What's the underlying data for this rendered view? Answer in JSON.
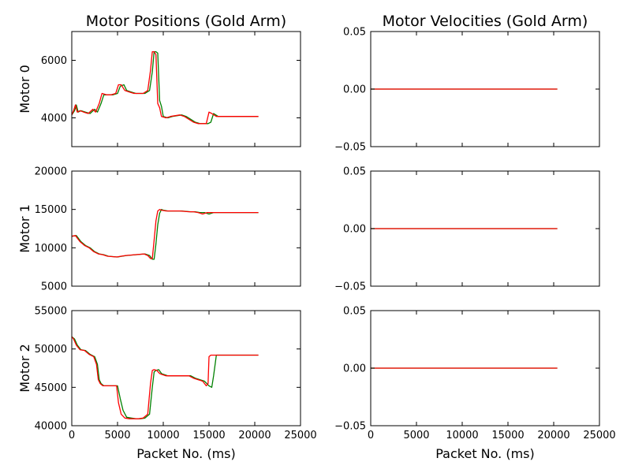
{
  "figure": {
    "titles": [
      "Motor Positions (Gold Arm)",
      "Motor Velocities (Gold Arm)"
    ],
    "xlabel": "Packet No. (ms)",
    "colors": {
      "series_a": "#008000",
      "series_b": "#ff0000"
    }
  },
  "chart_data": [
    {
      "type": "line",
      "title": "Motor Positions (Gold Arm)",
      "ylabel": "Motor 0",
      "xlabel": "",
      "xlim": [
        0,
        25000
      ],
      "ylim": [
        3000,
        7000
      ],
      "yticks": [
        4000,
        6000
      ],
      "ytick_labels": [
        "4000",
        "6000"
      ],
      "xticks": [
        0,
        5000,
        10000,
        15000,
        20000,
        25000
      ],
      "xtick_labels": [],
      "series": [
        {
          "color": "#008000",
          "x": [
            0,
            300,
            500,
            700,
            1000,
            1500,
            2000,
            2500,
            2800,
            3200,
            3500,
            4000,
            4500,
            5000,
            5300,
            5700,
            6000,
            6500,
            7000,
            7500,
            8000,
            8500,
            8800,
            9000,
            9200,
            9400,
            9600,
            9800,
            10000,
            10500,
            11000,
            12000,
            12500,
            13000,
            13500,
            14000,
            14500,
            14900,
            15200,
            15500,
            16000,
            17000,
            18000,
            19000,
            20000,
            20400
          ],
          "y": [
            4100,
            4250,
            4450,
            4200,
            4250,
            4200,
            4150,
            4300,
            4200,
            4500,
            4800,
            4800,
            4800,
            4850,
            5100,
            5150,
            4950,
            4900,
            4850,
            4850,
            4850,
            4950,
            5600,
            6300,
            6300,
            6250,
            4600,
            4400,
            4050,
            4000,
            4050,
            4100,
            4050,
            3950,
            3850,
            3800,
            3800,
            3800,
            3850,
            4150,
            4050,
            4050,
            4050,
            4050,
            4050,
            4050
          ]
        },
        {
          "color": "#ff0000",
          "x": [
            0,
            200,
            400,
            600,
            900,
            1300,
            1800,
            2300,
            2600,
            3000,
            3300,
            3800,
            4300,
            4800,
            5100,
            5400,
            5800,
            6300,
            6800,
            7300,
            7800,
            8300,
            8600,
            8800,
            9000,
            9200,
            9400,
            9600,
            9800,
            10300,
            10800,
            11800,
            12300,
            12800,
            13300,
            13800,
            14300,
            14700,
            15000,
            15300,
            15800,
            16800,
            17800,
            18800,
            19800,
            20400
          ],
          "y": [
            4100,
            4250,
            4450,
            4200,
            4250,
            4200,
            4150,
            4300,
            4200,
            4500,
            4850,
            4800,
            4800,
            4850,
            5150,
            5150,
            4950,
            4900,
            4850,
            4850,
            4850,
            4950,
            5650,
            6300,
            6300,
            6200,
            4500,
            4350,
            4050,
            4000,
            4050,
            4100,
            4050,
            3950,
            3850,
            3800,
            3800,
            3800,
            4200,
            4150,
            4050,
            4050,
            4050,
            4050,
            4050,
            4050
          ]
        }
      ]
    },
    {
      "type": "line",
      "title": "Motor Velocities (Gold Arm)",
      "ylabel": "",
      "xlabel": "",
      "xlim": [
        0,
        25000
      ],
      "ylim": [
        -0.05,
        0.05
      ],
      "yticks": [
        -0.05,
        0.0,
        0.05
      ],
      "ytick_labels": [
        "−0.05",
        "0.00",
        "0.05"
      ],
      "xticks": [
        0,
        5000,
        10000,
        15000,
        20000,
        25000
      ],
      "xtick_labels": [],
      "series": [
        {
          "color": "#008000",
          "x": [
            0,
            20400
          ],
          "y": [
            0,
            0
          ]
        },
        {
          "color": "#ff0000",
          "x": [
            0,
            20400
          ],
          "y": [
            0,
            0
          ]
        }
      ]
    },
    {
      "type": "line",
      "title": "",
      "ylabel": "Motor 1",
      "xlabel": "",
      "xlim": [
        0,
        25000
      ],
      "ylim": [
        5000,
        20000
      ],
      "yticks": [
        5000,
        10000,
        15000,
        20000
      ],
      "ytick_labels": [
        "5000",
        "10000",
        "15000",
        "20000"
      ],
      "xticks": [
        0,
        5000,
        10000,
        15000,
        20000,
        25000
      ],
      "xtick_labels": [],
      "series": [
        {
          "color": "#008000",
          "x": [
            0,
            500,
            1000,
            1500,
            2000,
            2500,
            3000,
            3500,
            4000,
            4500,
            5000,
            5500,
            6000,
            7000,
            8000,
            8500,
            8800,
            9000,
            9200,
            9400,
            9600,
            9800,
            10000,
            10500,
            11000,
            12000,
            13000,
            13500,
            14000,
            14500,
            15000,
            15500,
            16000,
            17000,
            18000,
            19000,
            20000,
            20400
          ],
          "y": [
            11500,
            11600,
            10800,
            10300,
            10000,
            9500,
            9200,
            9100,
            8900,
            8850,
            8800,
            8900,
            9000,
            9100,
            9200,
            9000,
            8500,
            8500,
            10500,
            13000,
            14500,
            15000,
            14900,
            14800,
            14800,
            14800,
            14700,
            14700,
            14600,
            14600,
            14400,
            14600,
            14600,
            14600,
            14600,
            14600,
            14600,
            14600
          ]
        },
        {
          "color": "#ff0000",
          "x": [
            0,
            400,
            900,
            1400,
            1900,
            2400,
            2900,
            3400,
            3900,
            4400,
            4900,
            5400,
            5900,
            6900,
            7900,
            8300,
            8600,
            8800,
            9000,
            9200,
            9400,
            9600,
            9800,
            10300,
            10800,
            11800,
            12800,
            13300,
            13800,
            14300,
            14800,
            15300,
            15800,
            16800,
            17800,
            18800,
            19800,
            20400
          ],
          "y": [
            11500,
            11600,
            10800,
            10300,
            10000,
            9500,
            9200,
            9100,
            8900,
            8850,
            8800,
            8900,
            9000,
            9100,
            9200,
            9000,
            8600,
            8600,
            11000,
            13500,
            14800,
            15000,
            14900,
            14800,
            14800,
            14800,
            14700,
            14700,
            14600,
            14400,
            14600,
            14600,
            14600,
            14600,
            14600,
            14600,
            14600,
            14600
          ]
        }
      ]
    },
    {
      "type": "line",
      "title": "",
      "ylabel": "",
      "xlabel": "",
      "xlim": [
        0,
        25000
      ],
      "ylim": [
        -0.05,
        0.05
      ],
      "yticks": [
        -0.05,
        0.0,
        0.05
      ],
      "ytick_labels": [
        "−0.05",
        "0.00",
        "0.05"
      ],
      "xticks": [
        0,
        5000,
        10000,
        15000,
        20000,
        25000
      ],
      "xtick_labels": [],
      "series": [
        {
          "color": "#008000",
          "x": [
            0,
            20400
          ],
          "y": [
            0,
            0
          ]
        },
        {
          "color": "#ff0000",
          "x": [
            0,
            20400
          ],
          "y": [
            0,
            0
          ]
        }
      ]
    },
    {
      "type": "line",
      "title": "",
      "ylabel": "Motor 2",
      "xlabel": "Packet No. (ms)",
      "xlim": [
        0,
        25000
      ],
      "ylim": [
        40000,
        55000
      ],
      "yticks": [
        40000,
        45000,
        50000,
        55000
      ],
      "ytick_labels": [
        "40000",
        "45000",
        "50000",
        "55000"
      ],
      "xticks": [
        0,
        5000,
        10000,
        15000,
        20000,
        25000
      ],
      "xtick_labels": [
        "0",
        "5000",
        "10000",
        "15000",
        "20000",
        "25000"
      ],
      "series": [
        {
          "color": "#008000",
          "x": [
            0,
            300,
            600,
            1000,
            1500,
            2000,
            2500,
            2800,
            3000,
            3200,
            3500,
            4000,
            4500,
            5000,
            5300,
            5600,
            6000,
            6500,
            7000,
            7500,
            8000,
            8500,
            8800,
            9000,
            9200,
            9500,
            9800,
            10000,
            10500,
            11000,
            12000,
            13000,
            13500,
            14000,
            14500,
            15000,
            15300,
            15500,
            15800,
            16500,
            17500,
            18500,
            19500,
            20400
          ],
          "y": [
            51600,
            51300,
            50500,
            49900,
            49800,
            49300,
            49000,
            48000,
            46000,
            45500,
            45200,
            45200,
            45200,
            45200,
            43500,
            42000,
            41100,
            41000,
            40900,
            40900,
            41000,
            41500,
            45000,
            47000,
            47200,
            47300,
            46800,
            46700,
            46500,
            46500,
            46500,
            46500,
            46200,
            46000,
            45800,
            45200,
            45000,
            46500,
            49200,
            49200,
            49200,
            49200,
            49200,
            49200
          ]
        },
        {
          "color": "#ff0000",
          "x": [
            0,
            200,
            500,
            900,
            1400,
            1900,
            2400,
            2700,
            2900,
            3100,
            3400,
            3900,
            4400,
            4900,
            5100,
            5400,
            5800,
            6300,
            6800,
            7300,
            7800,
            8300,
            8600,
            8800,
            9000,
            9300,
            9600,
            9800,
            10300,
            10800,
            11800,
            12800,
            13300,
            13800,
            14300,
            14700,
            14900,
            15000,
            15200,
            16000,
            17000,
            18000,
            19000,
            20400
          ],
          "y": [
            51600,
            51300,
            50500,
            49900,
            49800,
            49300,
            49000,
            48000,
            46000,
            45500,
            45200,
            45200,
            45200,
            45200,
            43000,
            41500,
            41000,
            40900,
            40900,
            40900,
            41000,
            41500,
            45500,
            47200,
            47300,
            47200,
            46800,
            46700,
            46500,
            46500,
            46500,
            46500,
            46200,
            46000,
            45800,
            45200,
            45500,
            49000,
            49200,
            49200,
            49200,
            49200,
            49200,
            49200
          ]
        }
      ]
    },
    {
      "type": "line",
      "title": "",
      "ylabel": "",
      "xlabel": "Packet No. (ms)",
      "xlim": [
        0,
        25000
      ],
      "ylim": [
        -0.05,
        0.05
      ],
      "yticks": [
        -0.05,
        0.0,
        0.05
      ],
      "ytick_labels": [
        "−0.05",
        "0.00",
        "0.05"
      ],
      "xticks": [
        0,
        5000,
        10000,
        15000,
        20000,
        25000
      ],
      "xtick_labels": [
        "0",
        "5000",
        "10000",
        "15000",
        "20000",
        "25000"
      ],
      "series": [
        {
          "color": "#008000",
          "x": [
            0,
            20400
          ],
          "y": [
            0,
            0
          ]
        },
        {
          "color": "#ff0000",
          "x": [
            0,
            20400
          ],
          "y": [
            0,
            0
          ]
        }
      ]
    }
  ]
}
